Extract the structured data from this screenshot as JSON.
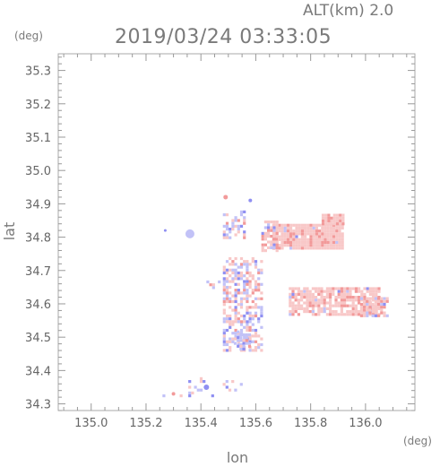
{
  "header": {
    "altitude_label": "ALT(km) 2.0",
    "timestamp": "2019/03/24 03:33:05"
  },
  "chart_data": {
    "type": "heatmap",
    "xlabel": "lon",
    "ylabel": "lat",
    "x_unit": "(deg)",
    "y_unit": "(deg)",
    "xlim": [
      134.88,
      136.18
    ],
    "ylim": [
      34.28,
      35.35
    ],
    "x_ticks": [
      "135.0",
      "135.2",
      "135.4",
      "135.6",
      "135.8",
      "136.0"
    ],
    "y_ticks": [
      "34.3",
      "34.4",
      "34.5",
      "34.6",
      "34.7",
      "34.8",
      "34.9",
      "35.0",
      "35.1",
      "35.2",
      "35.3"
    ],
    "colors": {
      "positive": "#f29a9a",
      "positive_light": "#f8c8c8",
      "negative": "#8f8ff2",
      "negative_light": "#c2c2f7"
    }
  }
}
